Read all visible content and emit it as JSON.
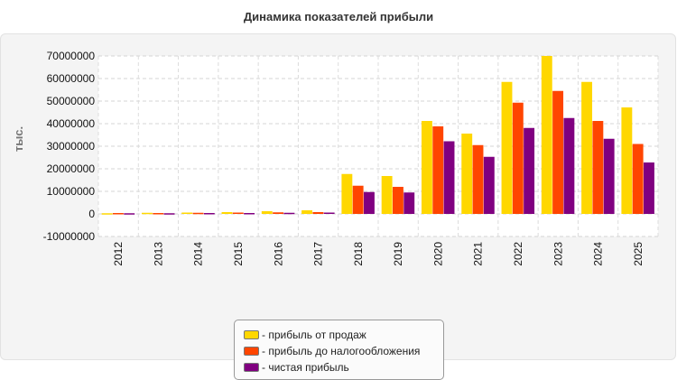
{
  "chart_data": {
    "type": "bar",
    "title": "Динамика показателей прибыли",
    "ylabel": "тыс.",
    "xlabel": "",
    "ylim": [
      -10000000,
      70000000
    ],
    "yticks": [
      -10000000,
      0,
      10000000,
      20000000,
      30000000,
      40000000,
      50000000,
      60000000,
      70000000
    ],
    "grid": true,
    "legend_position": "bottom",
    "categories": [
      "2012",
      "2013",
      "2014",
      "2015",
      "2016",
      "2017",
      "2018",
      "2019",
      "2020",
      "2021",
      "2022",
      "2023",
      "2024",
      "2025"
    ],
    "series": [
      {
        "name": "- прибыль от продаж",
        "color": "#FFD700",
        "values": [
          300000,
          500000,
          600000,
          800000,
          1200000,
          1600000,
          17700000,
          16800000,
          41200000,
          35600000,
          58500000,
          70000000,
          58500000,
          47200000
        ]
      },
      {
        "name": "- прибыль до налогообложения",
        "color": "#FF4500",
        "values": [
          400000,
          400000,
          500000,
          600000,
          700000,
          800000,
          12500000,
          12000000,
          38800000,
          30500000,
          49300000,
          54500000,
          41200000,
          31000000
        ]
      },
      {
        "name": "- чистая прибыль",
        "color": "#800080",
        "values": [
          300000,
          300000,
          400000,
          400000,
          500000,
          600000,
          9700000,
          9500000,
          32200000,
          25300000,
          38100000,
          42500000,
          33300000,
          22800000
        ]
      }
    ]
  }
}
